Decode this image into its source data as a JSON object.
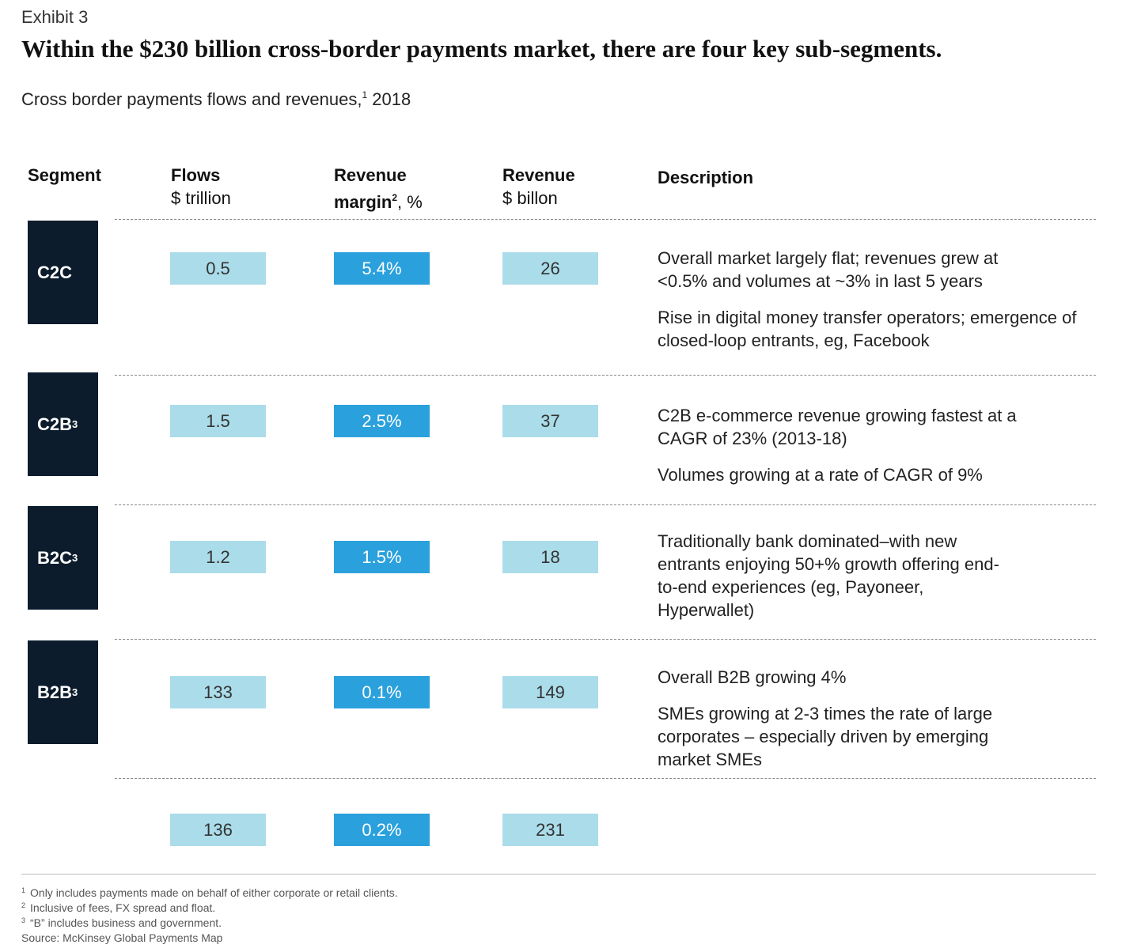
{
  "exhibit": "Exhibit 3",
  "title": "Within the $230 billion cross-border payments market, there are four key sub-segments.",
  "subtitle": {
    "text": "Cross border payments flows and revenues,",
    "sup": "1",
    "year": " 2018"
  },
  "headers": {
    "segment": "Segment",
    "flows": {
      "bold": "Flows",
      "unit": "$ trillion"
    },
    "margin": {
      "bold1": "Revenue",
      "bold2": "margin",
      "sup": "2",
      "unit": ", %"
    },
    "revenue": {
      "bold": "Revenue",
      "unit": "$ billon"
    },
    "description": "Description"
  },
  "chart_data": {
    "type": "table",
    "columns": [
      "Segment",
      "Flows ($ trillion)",
      "Revenue margin (%)",
      "Revenue ($ billon)",
      "Description"
    ],
    "rows": [
      {
        "segment": "C2C",
        "sup": "",
        "flows": "0.5",
        "margin": "5.4%",
        "revenue": "26",
        "desc": [
          "Overall market largely flat; revenues grew at <0.5% and volumes at ~3% in last 5 years",
          "Rise in digital money transfer operators; emergence of closed-loop entrants, eg, Facebook"
        ]
      },
      {
        "segment": "C2B",
        "sup": "3",
        "flows": "1.5",
        "margin": "2.5%",
        "revenue": "37",
        "desc": [
          "C2B e-commerce revenue growing fastest at a CAGR of 23% (2013-18)",
          "Volumes growing at a rate of CAGR of 9%"
        ]
      },
      {
        "segment": "B2C",
        "sup": "3",
        "flows": "1.2",
        "margin": "1.5%",
        "revenue": "18",
        "desc": [
          "Traditionally bank dominated–with new entrants enjoying 50+% growth offering end-to-end experiences (eg, Payoneer, Hyperwallet)"
        ]
      },
      {
        "segment": "B2B",
        "sup": "3",
        "flows": "133",
        "margin": "0.1%",
        "revenue": "149",
        "desc": [
          "Overall B2B growing 4%",
          "SMEs growing at 2-3 times the rate of large corporates – especially driven by emerging market SMEs"
        ]
      }
    ],
    "total": {
      "flows": "136",
      "margin": "0.2%",
      "revenue": "231"
    }
  },
  "footnotes": [
    {
      "sup": "1",
      "text": "Only includes payments made on behalf of either corporate or retail clients."
    },
    {
      "sup": "2",
      "text": "Inclusive of fees, FX spread and float."
    },
    {
      "sup": "3",
      "text": "“B” includes business and government."
    }
  ],
  "source": "Source: McKinsey Global Payments Map",
  "colors": {
    "segment_box": "#0c1c2c",
    "light_cell": "#abdcea",
    "dark_cell": "#2aa0dc"
  }
}
